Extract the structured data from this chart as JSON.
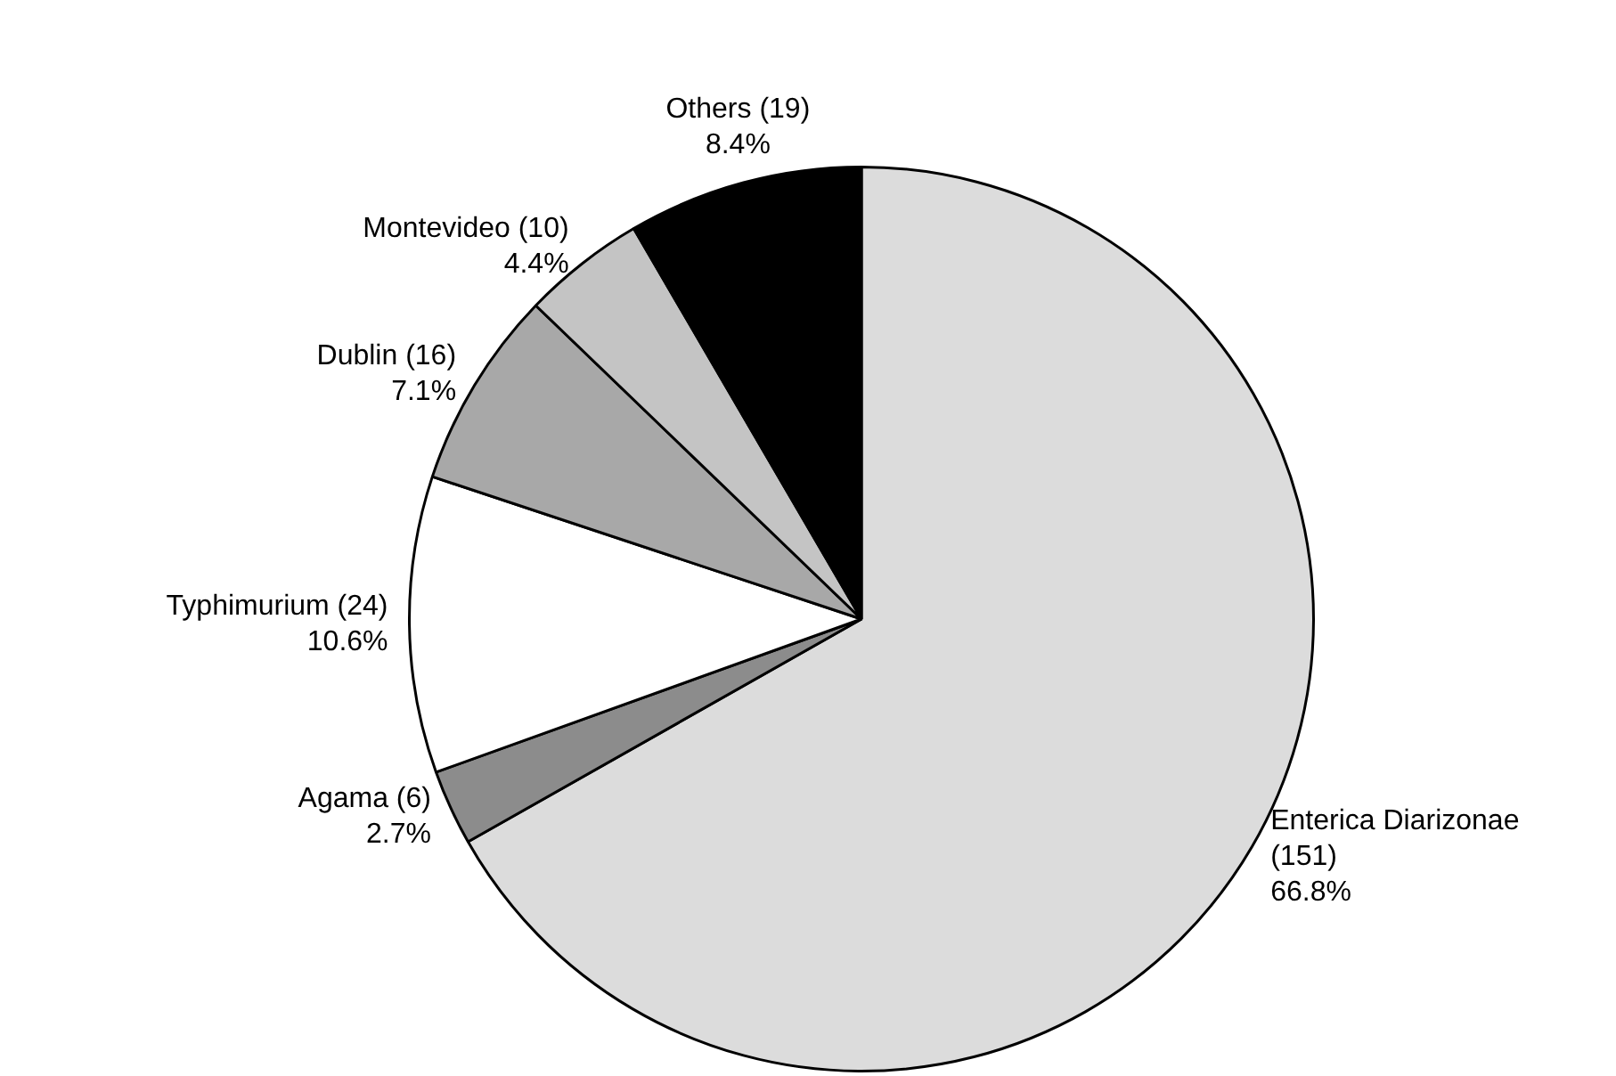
{
  "chart_data": {
    "type": "pie",
    "categories": [
      "Enterica Diarizonae (151)",
      "Agama (6)",
      "Typhimurium (24)",
      "Dublin (16)",
      "Montevideo (10)",
      "Others (19)"
    ],
    "values": [
      66.8,
      2.7,
      10.6,
      7.1,
      4.4,
      8.4
    ],
    "value_labels": [
      "66.8%",
      "2.7%",
      "10.6%",
      "7.1%",
      "4.4%",
      "8.4%"
    ],
    "colors": [
      "#dcdcdc",
      "#8c8c8c",
      "#ffffff",
      "#a8a8a8",
      "#c4c4c4",
      "#000000"
    ],
    "legend": false
  }
}
